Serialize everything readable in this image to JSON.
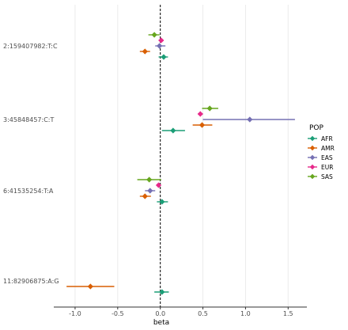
{
  "chart_data": {
    "type": "forest",
    "xlabel": "beta",
    "xlim": [
      -1.25,
      1.72
    ],
    "xticks": [
      -1.0,
      -0.5,
      0.0,
      0.5,
      1.0,
      1.5
    ],
    "xtick_labels": [
      "-1.0",
      "-0.5",
      "0.0",
      "0.5",
      "1.0",
      "1.5"
    ],
    "grid": true,
    "reference_line": 0,
    "legend": {
      "title": "POP",
      "placement": "right",
      "entries": [
        {
          "name": "AFR",
          "color": "#1B9E77"
        },
        {
          "name": "AMR",
          "color": "#D95F02"
        },
        {
          "name": "EAS",
          "color": "#7570B3"
        },
        {
          "name": "EUR",
          "color": "#E7298A"
        },
        {
          "name": "SAS",
          "color": "#66A61E"
        }
      ]
    },
    "categories": [
      "2:159407982:T:C",
      "3:45848457:C:T",
      "6:41535254:T:A",
      "11:82906875:A:G"
    ],
    "series": [
      {
        "name": "AFR",
        "values": [
          {
            "snp": "2:159407982:T:C",
            "beta": 0.04,
            "lo": -0.02,
            "hi": 0.09
          },
          {
            "snp": "3:45848457:C:T",
            "beta": 0.15,
            "lo": 0.02,
            "hi": 0.29
          },
          {
            "snp": "6:41535254:T:A",
            "beta": 0.02,
            "lo": -0.04,
            "hi": 0.09
          },
          {
            "snp": "11:82906875:A:G",
            "beta": 0.02,
            "lo": -0.07,
            "hi": 0.1
          }
        ]
      },
      {
        "name": "AMR",
        "values": [
          {
            "snp": "2:159407982:T:C",
            "beta": -0.18,
            "lo": -0.24,
            "hi": -0.12
          },
          {
            "snp": "3:45848457:C:T",
            "beta": 0.49,
            "lo": 0.38,
            "hi": 0.61
          },
          {
            "snp": "6:41535254:T:A",
            "beta": -0.18,
            "lo": -0.24,
            "hi": -0.11
          },
          {
            "snp": "11:82906875:A:G",
            "beta": -0.82,
            "lo": -1.1,
            "hi": -0.54
          }
        ]
      },
      {
        "name": "EAS",
        "values": [
          {
            "snp": "2:159407982:T:C",
            "beta": -0.01,
            "lo": -0.06,
            "hi": 0.06
          },
          {
            "snp": "3:45848457:C:T",
            "beta": 1.05,
            "lo": 0.5,
            "hi": 1.58
          },
          {
            "snp": "6:41535254:T:A",
            "beta": -0.12,
            "lo": -0.18,
            "hi": -0.06
          }
        ]
      },
      {
        "name": "EUR",
        "values": [
          {
            "snp": "2:159407982:T:C",
            "beta": 0.01,
            "lo": -0.02,
            "hi": 0.04
          },
          {
            "snp": "3:45848457:C:T",
            "beta": 0.47,
            "lo": 0.44,
            "hi": 0.5
          },
          {
            "snp": "6:41535254:T:A",
            "beta": -0.02,
            "lo": -0.04,
            "hi": 0.0
          }
        ]
      },
      {
        "name": "SAS",
        "values": [
          {
            "snp": "2:159407982:T:C",
            "beta": -0.07,
            "lo": -0.14,
            "hi": -0.01
          },
          {
            "snp": "3:45848457:C:T",
            "beta": 0.58,
            "lo": 0.49,
            "hi": 0.68
          },
          {
            "snp": "6:41535254:T:A",
            "beta": -0.13,
            "lo": -0.27,
            "hi": 0.01
          }
        ]
      }
    ]
  }
}
